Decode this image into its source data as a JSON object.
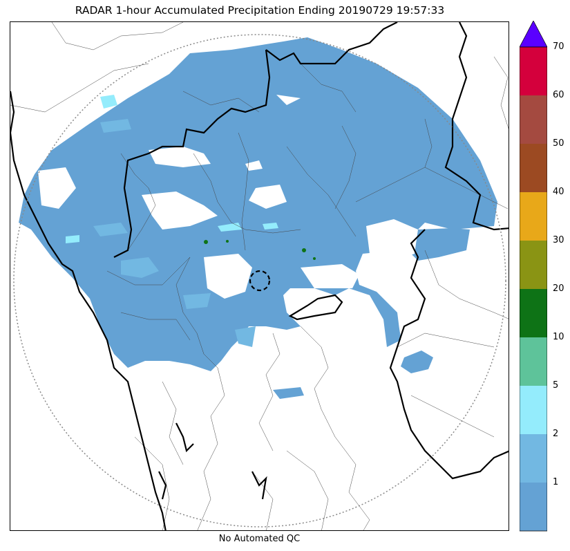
{
  "title": "RADAR 1-hour Accumulated Precipitation Ending 20190729 19:57:33",
  "footer": "No Automated QC",
  "colorbar": {
    "ticks": [
      "1",
      "2",
      "5",
      "10",
      "20",
      "30",
      "40",
      "50",
      "60",
      "70"
    ],
    "colors": [
      "#64a2d4",
      "#72b8e2",
      "#94ecfc",
      "#5ec39a",
      "#0e7316",
      "#8a9414",
      "#e8a819",
      "#9c4a22",
      "#a44a40",
      "#d4003c"
    ],
    "extend_color": "#5a00ff"
  },
  "legend_colors": {
    "rain": "#64a2d4",
    "light": "#72b8e2",
    "moderate": "#94ecfc",
    "heavy": "#0e7316"
  }
}
